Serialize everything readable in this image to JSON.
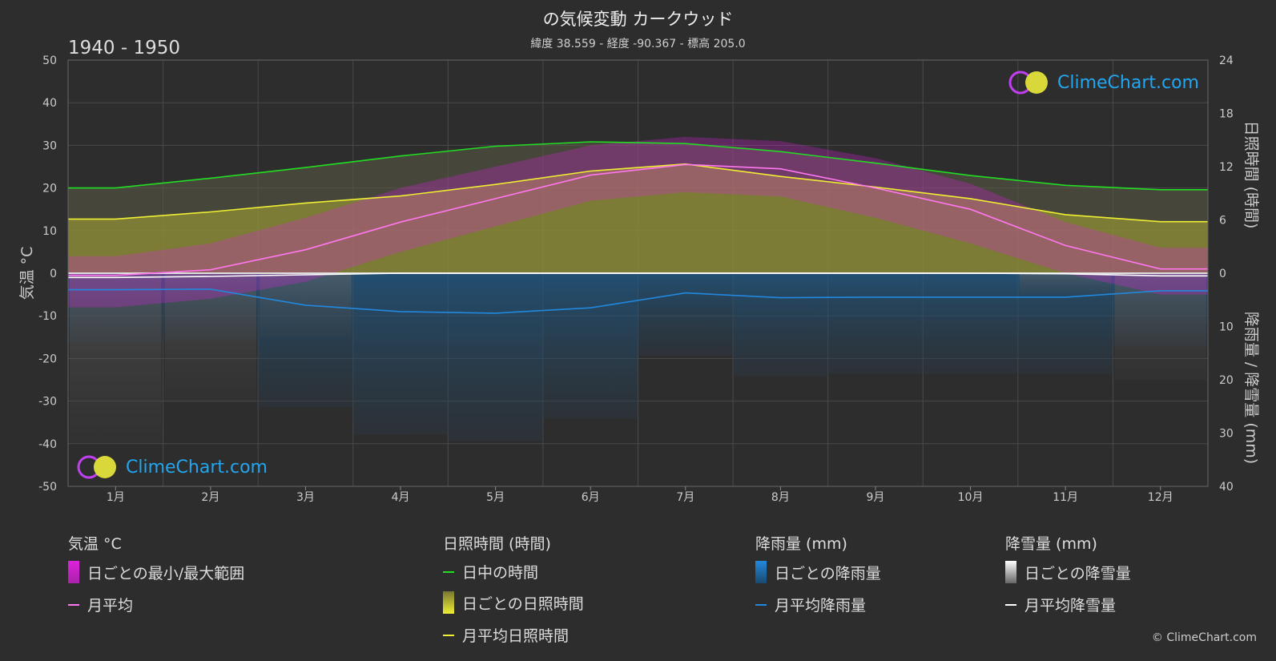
{
  "title": "の気候変動 カークウッド",
  "subtitle": "緯度 38.559 - 経度 -90.367 - 標高 205.0",
  "period": "1940 - 1950",
  "logo_text": "ClimeChart.com",
  "copyright": "© ClimeChart.com",
  "colors": {
    "background": "#2d2d2d",
    "daylight": "#22dd22",
    "sunshine_avg": "#eeee33",
    "sunshine_fill": "#aaaa33",
    "temp_range": "#dd22dd",
    "temp_avg": "#ff77ee",
    "rain": "#2288dd",
    "snow": "#ffffff"
  },
  "legend": {
    "temp": {
      "heading": "気温 °C",
      "range_label": "日ごとの最小/最大範囲",
      "avg_label": "月平均"
    },
    "sun": {
      "heading": "日照時間 (時間)",
      "daylight_label": "日中の時間",
      "daily_label": "日ごとの日照時間",
      "avg_label": "月平均日照時間"
    },
    "rain": {
      "heading": "降雨量 (mm)",
      "daily_label": "日ごとの降雨量",
      "avg_label": "月平均降雨量"
    },
    "snow": {
      "heading": "降雪量 (mm)",
      "daily_label": "日ごとの降雪量",
      "avg_label": "月平均降雪量"
    }
  },
  "chart_data": {
    "type": "line",
    "left_axis_label": "気温 °C",
    "right_axis_top_label": "日照時間 (時間)",
    "right_axis_bottom_label": "降雨量 / 降雪量 (mm)",
    "left_ticks": [
      "50",
      "40",
      "30",
      "20",
      "10",
      "0",
      "-10",
      "-20",
      "-30",
      "-40",
      "-50"
    ],
    "right_top_ticks": [
      "24",
      "18",
      "12",
      "6",
      "0"
    ],
    "right_bottom_ticks": [
      "10",
      "20",
      "30",
      "40"
    ],
    "temp_ylim": [
      -50,
      50
    ],
    "sun_ylim": [
      0,
      24
    ],
    "precip_ylim": [
      0,
      40
    ],
    "categories": [
      "1月",
      "2月",
      "3月",
      "4月",
      "5月",
      "6月",
      "7月",
      "8月",
      "9月",
      "10月",
      "11月",
      "12月"
    ],
    "series": [
      {
        "name": "日中の時間",
        "unit": "hours",
        "values": [
          9.6,
          10.7,
          11.9,
          13.2,
          14.3,
          14.8,
          14.6,
          13.7,
          12.4,
          11.0,
          9.9,
          9.4
        ]
      },
      {
        "name": "月平均日照時間",
        "unit": "hours",
        "values": [
          6.1,
          6.9,
          7.9,
          8.7,
          10.0,
          11.5,
          12.3,
          10.9,
          9.7,
          8.4,
          6.6,
          5.8
        ]
      },
      {
        "name": "月平均",
        "unit": "°C",
        "values": [
          -0.5,
          0.8,
          5.5,
          12.0,
          17.5,
          23.0,
          25.5,
          24.5,
          20.0,
          15.0,
          6.5,
          1.0
        ]
      },
      {
        "name": "月平均降雨量",
        "unit": "mm",
        "values": [
          3.1,
          3.0,
          6.0,
          7.2,
          7.5,
          6.5,
          3.7,
          4.6,
          4.5,
          4.5,
          4.5,
          3.3
        ]
      },
      {
        "name": "月平均降雪量",
        "unit": "mm",
        "values": [
          0.8,
          0.6,
          0.3,
          0.0,
          0.0,
          0.0,
          0.0,
          0.0,
          0.0,
          0.0,
          0.1,
          0.5
        ]
      }
    ],
    "temp_range_max": [
      4,
      7,
      13,
      20,
      25,
      30,
      32,
      31,
      27,
      21,
      12,
      6
    ],
    "temp_range_min": [
      -8,
      -6,
      -2,
      5,
      11,
      17,
      19,
      18,
      13,
      7,
      0,
      -5
    ],
    "grid": true
  }
}
